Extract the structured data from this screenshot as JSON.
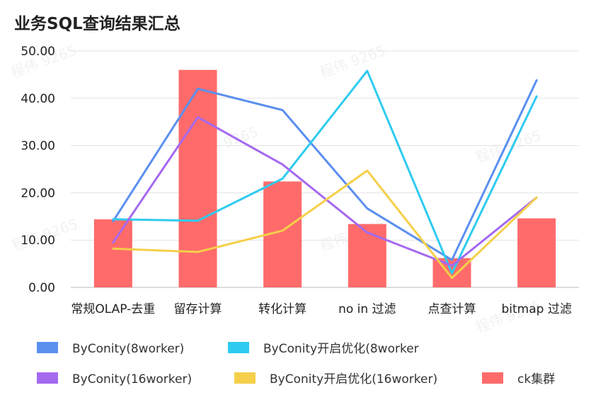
{
  "chart_data": {
    "type": "bar",
    "title": "业务SQL查询结果汇总",
    "xlabel": "",
    "ylabel": "",
    "ylim": [
      0,
      50
    ],
    "yticks": [
      "0.00",
      "10.00",
      "20.00",
      "30.00",
      "40.00",
      "50.00"
    ],
    "grid": true,
    "legend_position": "bottom",
    "categories": [
      "常规OLAP-去重",
      "留存计算",
      "转化计算",
      "no in 过滤",
      "点查计算",
      "bitmap 过滤"
    ],
    "series": [
      {
        "name": "ByConity(8worker)",
        "kind": "line",
        "color": "#5b8ff0",
        "values": [
          14,
          42,
          37.5,
          16.7,
          5.8,
          43.8
        ]
      },
      {
        "name": "ByConity开启优化(8worker",
        "kind": "line",
        "color": "#2ecbf0",
        "values": [
          14.4,
          14.1,
          23,
          45.8,
          3,
          40.4
        ]
      },
      {
        "name": "ByConity(16worker)",
        "kind": "line",
        "color": "#a569f0",
        "values": [
          9.5,
          36,
          26,
          11.6,
          4.6,
          19
        ]
      },
      {
        "name": "ByConity开启优化(16worker)",
        "kind": "line",
        "color": "#f5cf4a",
        "values": [
          8.2,
          7.5,
          12,
          24.7,
          2,
          19
        ]
      },
      {
        "name": "ck集群",
        "kind": "bar",
        "color": "#ff6b6b",
        "values": [
          14.4,
          46,
          22.4,
          13.4,
          6.2,
          14.6
        ]
      }
    ],
    "watermark": "程伟 9265"
  }
}
